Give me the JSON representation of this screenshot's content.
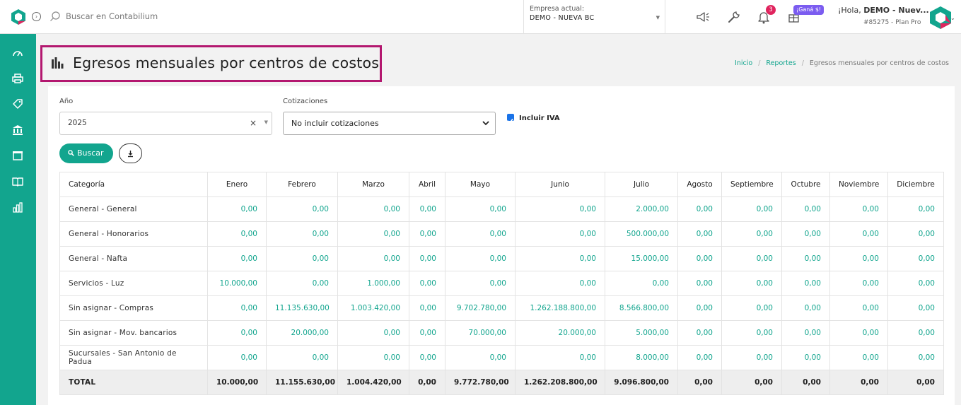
{
  "topbar": {
    "search_placeholder": "Buscar en Contabilium",
    "company_label": "Empresa actual:",
    "company_value": "DEMO - NUEVA BC",
    "notifications_count": "3",
    "promo_badge": "¡Ganá $!",
    "greeting_prefix": "¡Hola, ",
    "greeting_name": "DEMO - Nuev...",
    "plan": "#85275 - Plan Pro",
    "brand_colors": {
      "teal": "#12a58e",
      "magenta": "#e0245e",
      "purple": "#7b5cf0"
    }
  },
  "sidebar": {
    "items": [
      {
        "icon": "dashboard-icon"
      },
      {
        "icon": "printer-icon"
      },
      {
        "icon": "tag-icon"
      },
      {
        "icon": "bank-icon"
      },
      {
        "icon": "box-icon"
      },
      {
        "icon": "book-icon"
      },
      {
        "icon": "bar-chart-icon"
      }
    ]
  },
  "page": {
    "title": "Egresos mensuales por centros de costos",
    "breadcrumb": [
      "Inicio",
      "Reportes",
      "Egresos mensuales por centros de costos"
    ]
  },
  "filters": {
    "year_label": "Año",
    "year_value": "2025",
    "year_clear": "×",
    "cot_label": "Cotizaciones",
    "cot_value": "No incluir cotizaciones",
    "iva_label": "Incluir IVA",
    "iva_checked": true,
    "search_button": "Buscar"
  },
  "table": {
    "headers": [
      "Categoría",
      "Enero",
      "Febrero",
      "Marzo",
      "Abril",
      "Mayo",
      "Junio",
      "Julio",
      "Agosto",
      "Septiembre",
      "Octubre",
      "Noviembre",
      "Diciembre"
    ],
    "rows": [
      [
        "General - General",
        "0,00",
        "0,00",
        "0,00",
        "0,00",
        "0,00",
        "0,00",
        "2.000,00",
        "0,00",
        "0,00",
        "0,00",
        "0,00",
        "0,00"
      ],
      [
        "General - Honorarios",
        "0,00",
        "0,00",
        "0,00",
        "0,00",
        "0,00",
        "0,00",
        "500.000,00",
        "0,00",
        "0,00",
        "0,00",
        "0,00",
        "0,00"
      ],
      [
        "General - Nafta",
        "0,00",
        "0,00",
        "0,00",
        "0,00",
        "0,00",
        "0,00",
        "15.000,00",
        "0,00",
        "0,00",
        "0,00",
        "0,00",
        "0,00"
      ],
      [
        "Servicios - Luz",
        "10.000,00",
        "0,00",
        "1.000,00",
        "0,00",
        "0,00",
        "0,00",
        "0,00",
        "0,00",
        "0,00",
        "0,00",
        "0,00",
        "0,00"
      ],
      [
        "Sin asignar - Compras",
        "0,00",
        "11.135.630,00",
        "1.003.420,00",
        "0,00",
        "9.702.780,00",
        "1.262.188.800,00",
        "8.566.800,00",
        "0,00",
        "0,00",
        "0,00",
        "0,00",
        "0,00"
      ],
      [
        "Sin asignar - Mov. bancarios",
        "0,00",
        "20.000,00",
        "0,00",
        "0,00",
        "70.000,00",
        "20.000,00",
        "5.000,00",
        "0,00",
        "0,00",
        "0,00",
        "0,00",
        "0,00"
      ],
      [
        "Sucursales - San Antonio de Padua",
        "0,00",
        "0,00",
        "0,00",
        "0,00",
        "0,00",
        "0,00",
        "8.000,00",
        "0,00",
        "0,00",
        "0,00",
        "0,00",
        "0,00"
      ]
    ],
    "total": [
      "TOTAL",
      "10.000,00",
      "11.155.630,00",
      "1.004.420,00",
      "0,00",
      "9.772.780,00",
      "1.262.208.800,00",
      "9.096.800,00",
      "0,00",
      "0,00",
      "0,00",
      "0,00",
      "0,00"
    ]
  }
}
